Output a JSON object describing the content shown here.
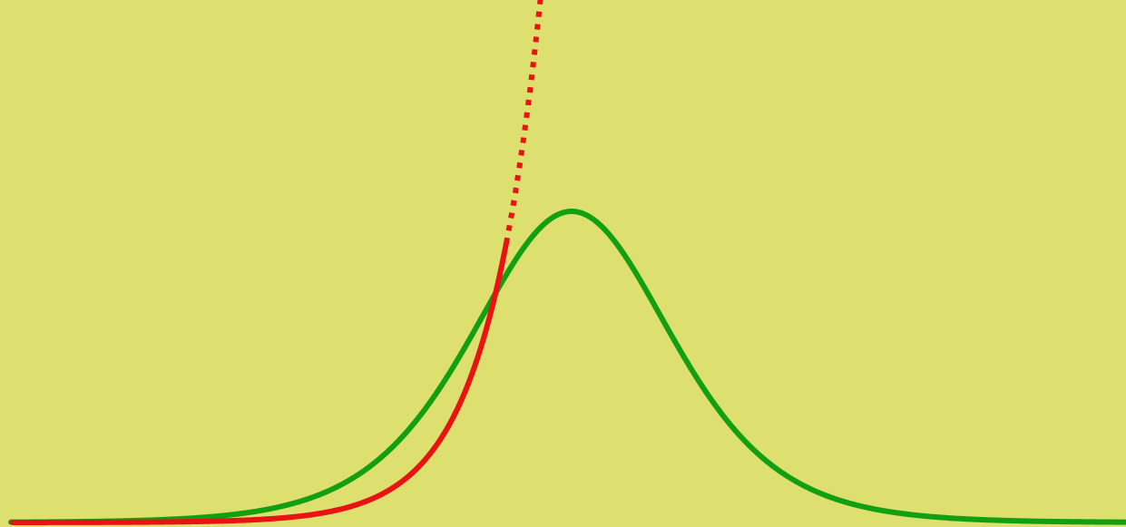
{
  "colors": {
    "background": "#dde06f",
    "bell_curve": "#12a012",
    "exponential_curve": "#e81414"
  },
  "curves": {
    "bell": {
      "shape": "bell-shaped",
      "line_style": "solid"
    },
    "exponential": {
      "shape": "exponential-growth",
      "line_style": "solid-then-dotted"
    }
  }
}
